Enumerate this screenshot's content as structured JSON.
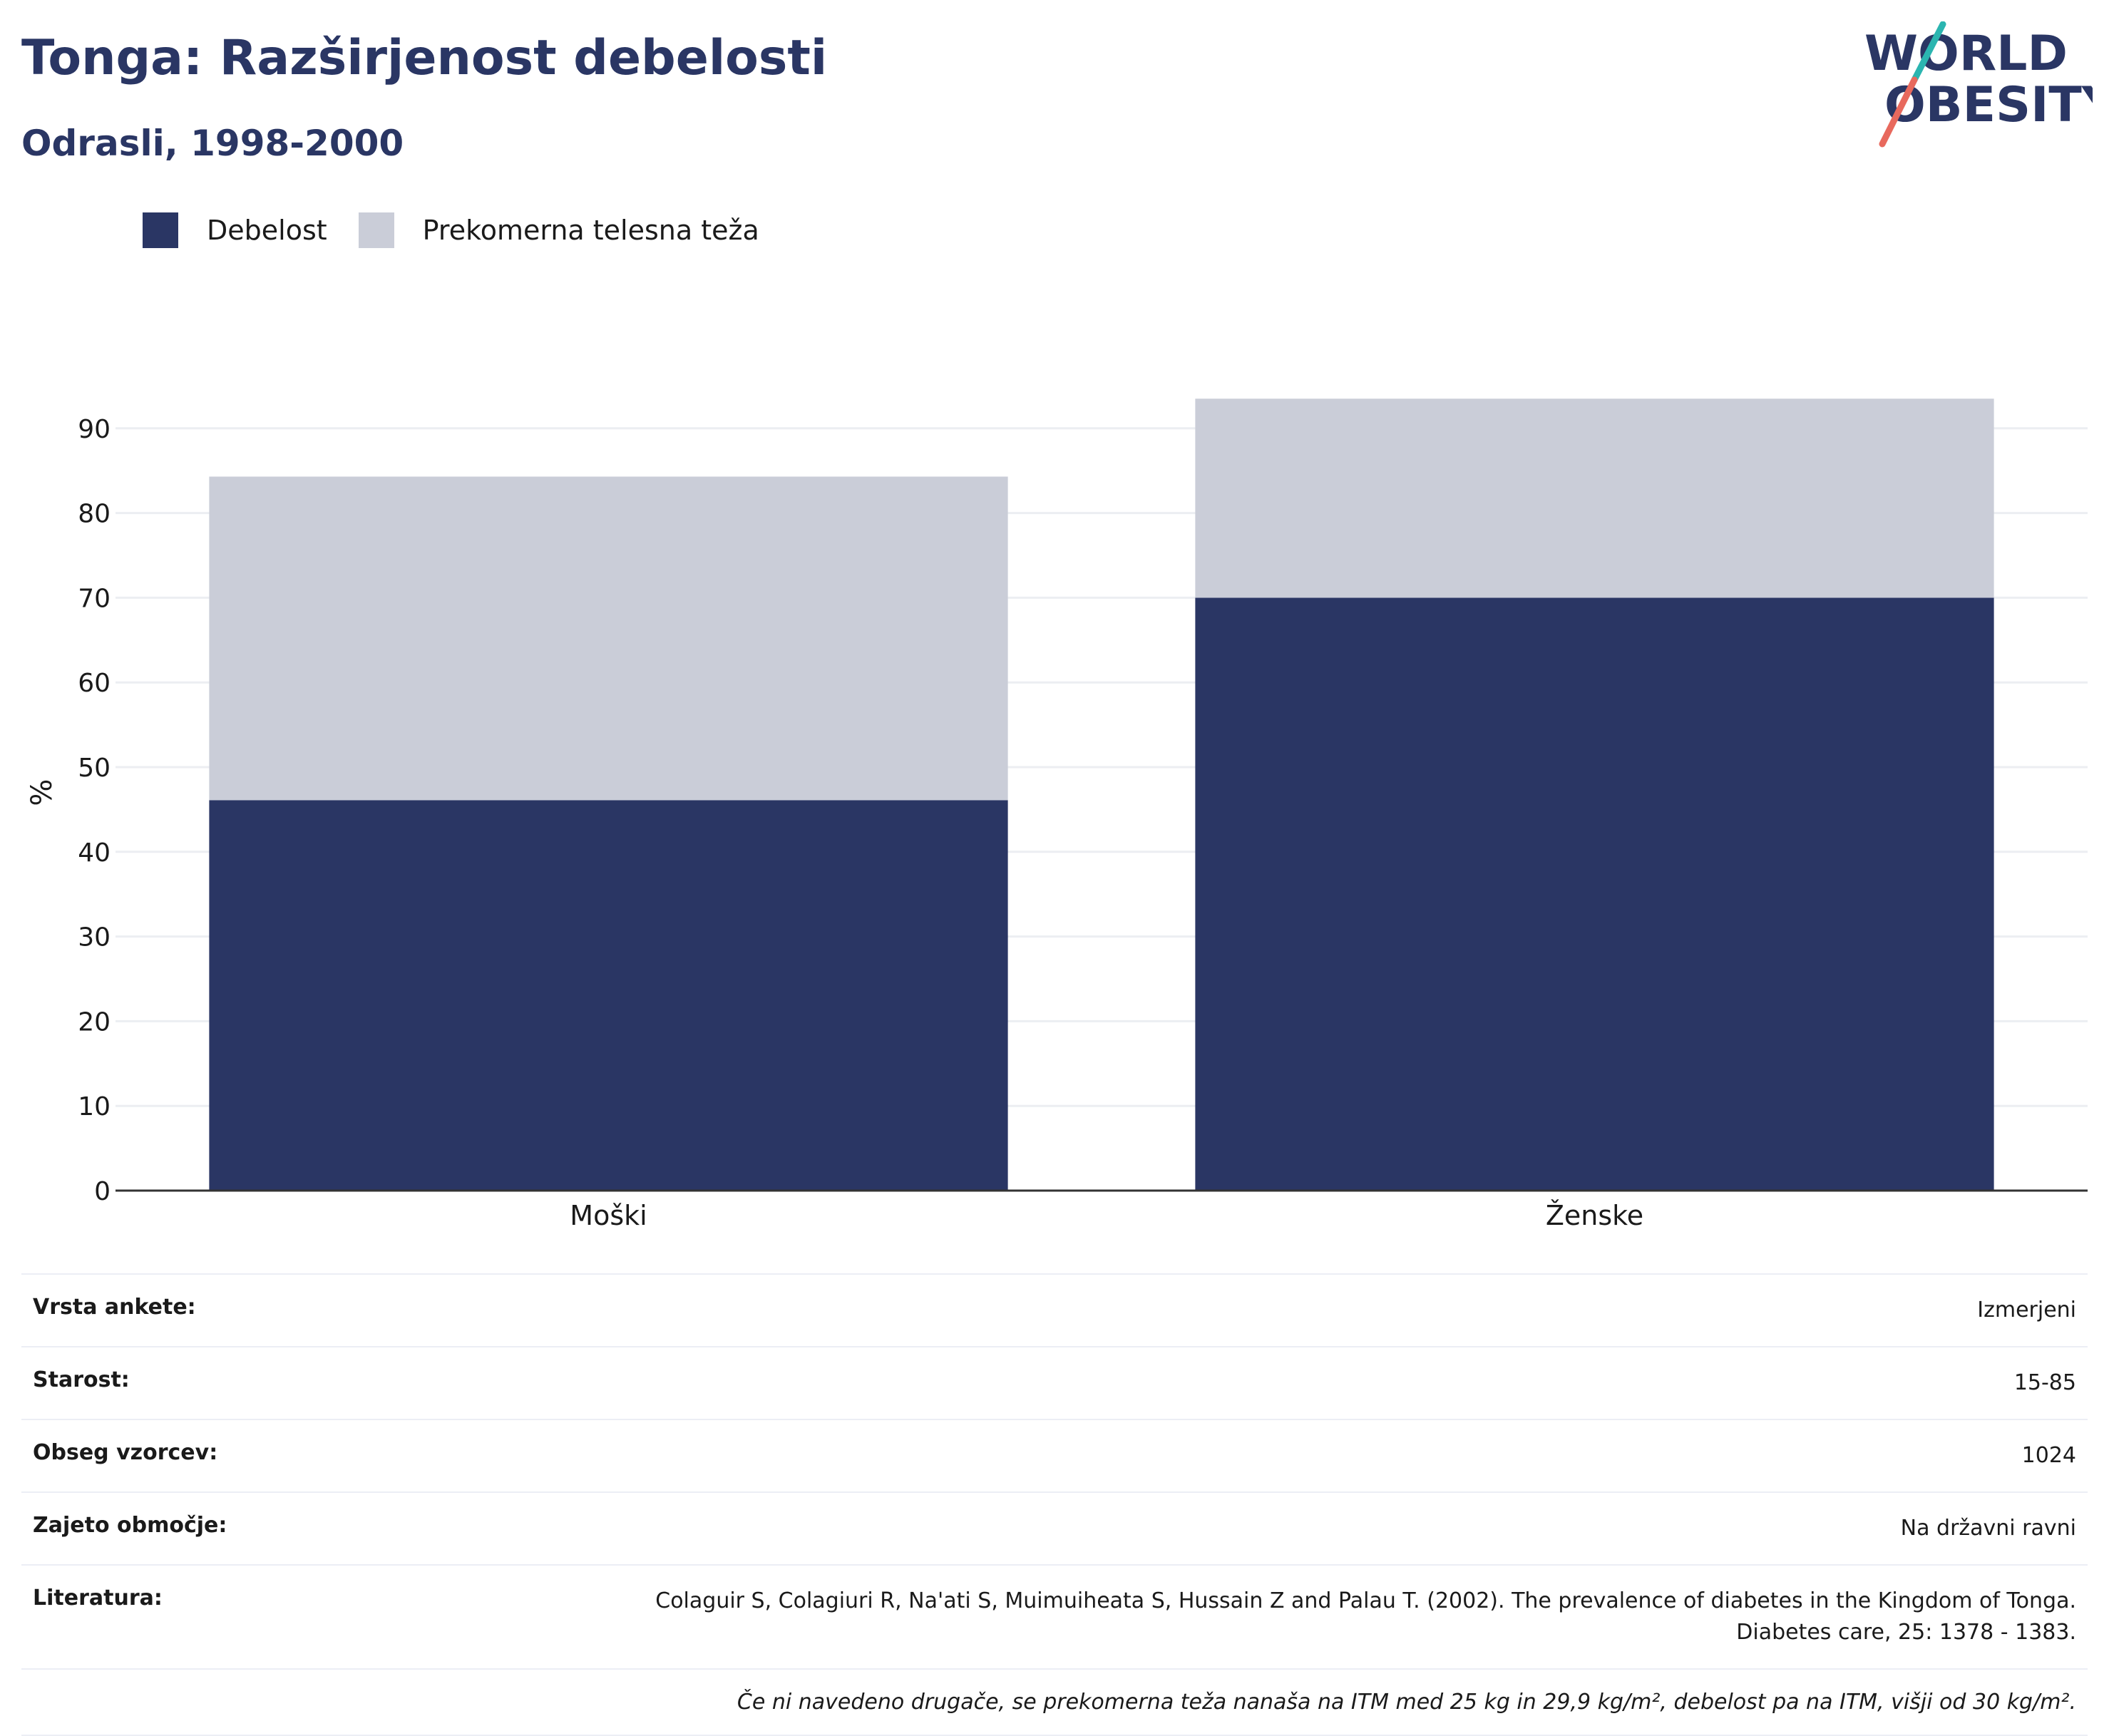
{
  "header": {
    "title": "Tonga: Razširjenost debelosti",
    "subtitle": "Odrasli, 1998-2000"
  },
  "logo": {
    "line1": "WORLD",
    "line2": "OBESITY",
    "accent_teal": "#2bb5b0",
    "accent_red": "#e8695d"
  },
  "legend": [
    {
      "label": "Debelost",
      "color": "#2a3664"
    },
    {
      "label": "Prekomerna telesna teža",
      "color": "#cacdd8"
    }
  ],
  "chart_data": {
    "type": "bar",
    "stacked": true,
    "categories": [
      "Moški",
      "Ženske"
    ],
    "series": [
      {
        "name": "Debelost",
        "color": "#2a3664",
        "values": [
          46.1,
          70.0
        ]
      },
      {
        "name": "Prekomerna telesna teža",
        "color": "#cacdd8",
        "values": [
          38.2,
          23.5
        ]
      }
    ],
    "ylabel": "%",
    "ylim": [
      0,
      95
    ],
    "yticks": [
      0,
      10,
      20,
      30,
      40,
      50,
      60,
      70,
      80,
      90
    ],
    "grid": true
  },
  "info": {
    "rows": [
      {
        "key": "Vrsta ankete:",
        "value": "Izmerjeni"
      },
      {
        "key": "Starost:",
        "value": "15-85"
      },
      {
        "key": "Obseg vzorcev:",
        "value": "1024"
      },
      {
        "key": "Zajeto območje:",
        "value": "Na državni ravni"
      }
    ],
    "literature_key": "Literatura:",
    "literature_line1": "Colaguir S, Colagiuri R, Na'ati S, Muimuiheata S, Hussain Z and Palau T. (2002). The prevalence of diabetes in the Kingdom of Tonga.",
    "literature_line2": "Diabetes care, 25: 1378 - 1383.",
    "note": "Če ni navedeno drugače, se prekomerna teža nanaša na ITM med 25 kg in 29,9 kg/m², debelost pa na ITM, višji od 30 kg/m²."
  }
}
